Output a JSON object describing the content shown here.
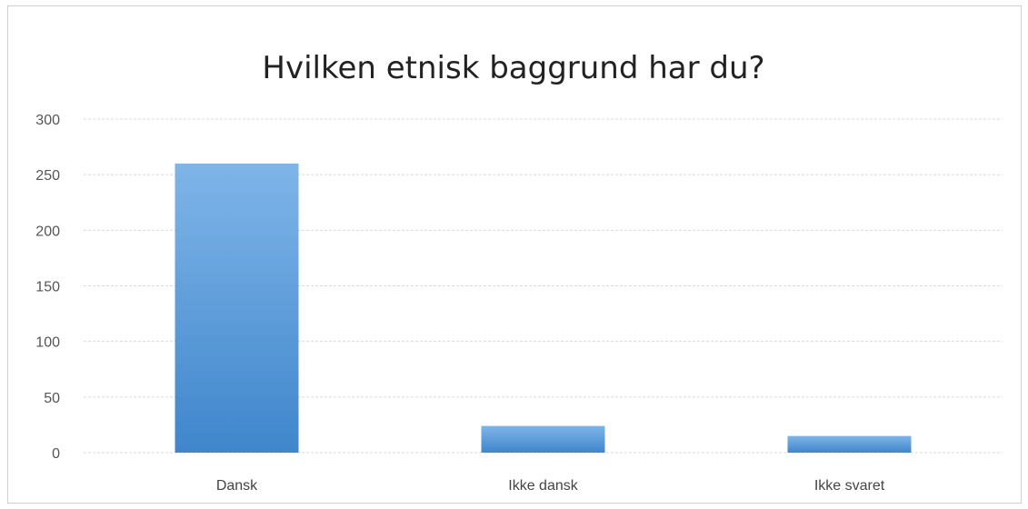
{
  "chart_data": {
    "type": "bar",
    "title": "Hvilken etnisk baggrund har du?",
    "xlabel": "",
    "ylabel": "",
    "categories": [
      "Dansk",
      "Ikke dansk",
      "Ikke svaret"
    ],
    "values": [
      260,
      24,
      15
    ],
    "ylim": [
      0,
      300
    ],
    "yticks": [
      0,
      50,
      100,
      150,
      200,
      250,
      300
    ],
    "grid": true,
    "legend": "none",
    "colors": {
      "bar_top": "#7fb5e8",
      "bar_bottom": "#3f86cc",
      "grid": "#d9d9d9"
    }
  }
}
